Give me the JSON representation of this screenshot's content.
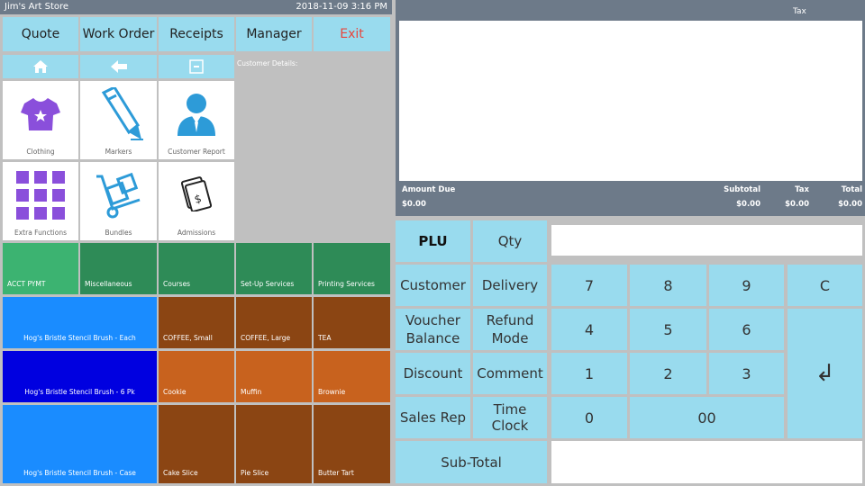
{
  "window": {
    "title": "Jim's Art Store",
    "datetime": "2018-11-09 3:16 PM"
  },
  "top_buttons": [
    "Quote",
    "Work Order",
    "Receipts",
    "Manager",
    "Exit"
  ],
  "customer_details_label": "Customer Details:",
  "tiles": [
    {
      "label": "Clothing",
      "icon": "tshirt-icon"
    },
    {
      "label": "Markers",
      "icon": "marker-icon"
    },
    {
      "label": "Customer Report",
      "icon": "person-icon"
    },
    {
      "label": "Extra Functions",
      "icon": "grid-icon"
    },
    {
      "label": "Bundles",
      "icon": "hand-truck-icon"
    },
    {
      "label": "Admissions",
      "icon": "ticket-icon"
    }
  ],
  "categories": [
    "ACCT PYMT",
    "Miscellaneous",
    "Courses",
    "Set-Up Services",
    "Printing Services"
  ],
  "products": {
    "brush_each": "Hog's Bristle Stencil Brush - Each",
    "brush_6pk": "Hog's Bristle Stencil Brush - 6 Pk",
    "brush_case": "Hog's Bristle Stencil Brush - Case",
    "row1": [
      "COFFEE, Small",
      "COFFEE, Large",
      "TEA"
    ],
    "row2": [
      "Cookie",
      "Muffin",
      "Brownie"
    ],
    "row3": [
      "Cake Slice",
      "Pie Slice",
      "Butter Tart"
    ]
  },
  "receipt_header": {
    "tax": "Tax"
  },
  "totals": {
    "amount_due_label": "Amount Due",
    "amount_due": "$0.00",
    "subtotal_label": "Subtotal",
    "subtotal": "$0.00",
    "tax_label": "Tax",
    "tax": "$0.00",
    "total_label": "Total",
    "total": "$0.00"
  },
  "keypad": {
    "plu": "PLU",
    "qty": "Qty",
    "customer": "Customer",
    "delivery": "Delivery",
    "voucher": "Voucher Balance",
    "refund": "Refund Mode",
    "discount": "Discount",
    "comment": "Comment",
    "sales_rep": "Sales Rep",
    "time_clock": "Time Clock",
    "subtotal": "Sub-Total",
    "digits": [
      "7",
      "8",
      "9",
      "4",
      "5",
      "6",
      "1",
      "2",
      "3",
      "0",
      "00"
    ],
    "clear": "C",
    "enter": "↲"
  },
  "colors": {
    "button_blue": "#99dbee",
    "header_slate": "#6d7a89",
    "category_green": "#2e8b57",
    "brush_blue": "#1a8cff",
    "brush_navy": "#0000e0",
    "drink_brown": "#8b4513",
    "bakery_orange": "#c8621e",
    "icon_purple": "#8a4fdb",
    "icon_blue": "#2d9bd8"
  }
}
